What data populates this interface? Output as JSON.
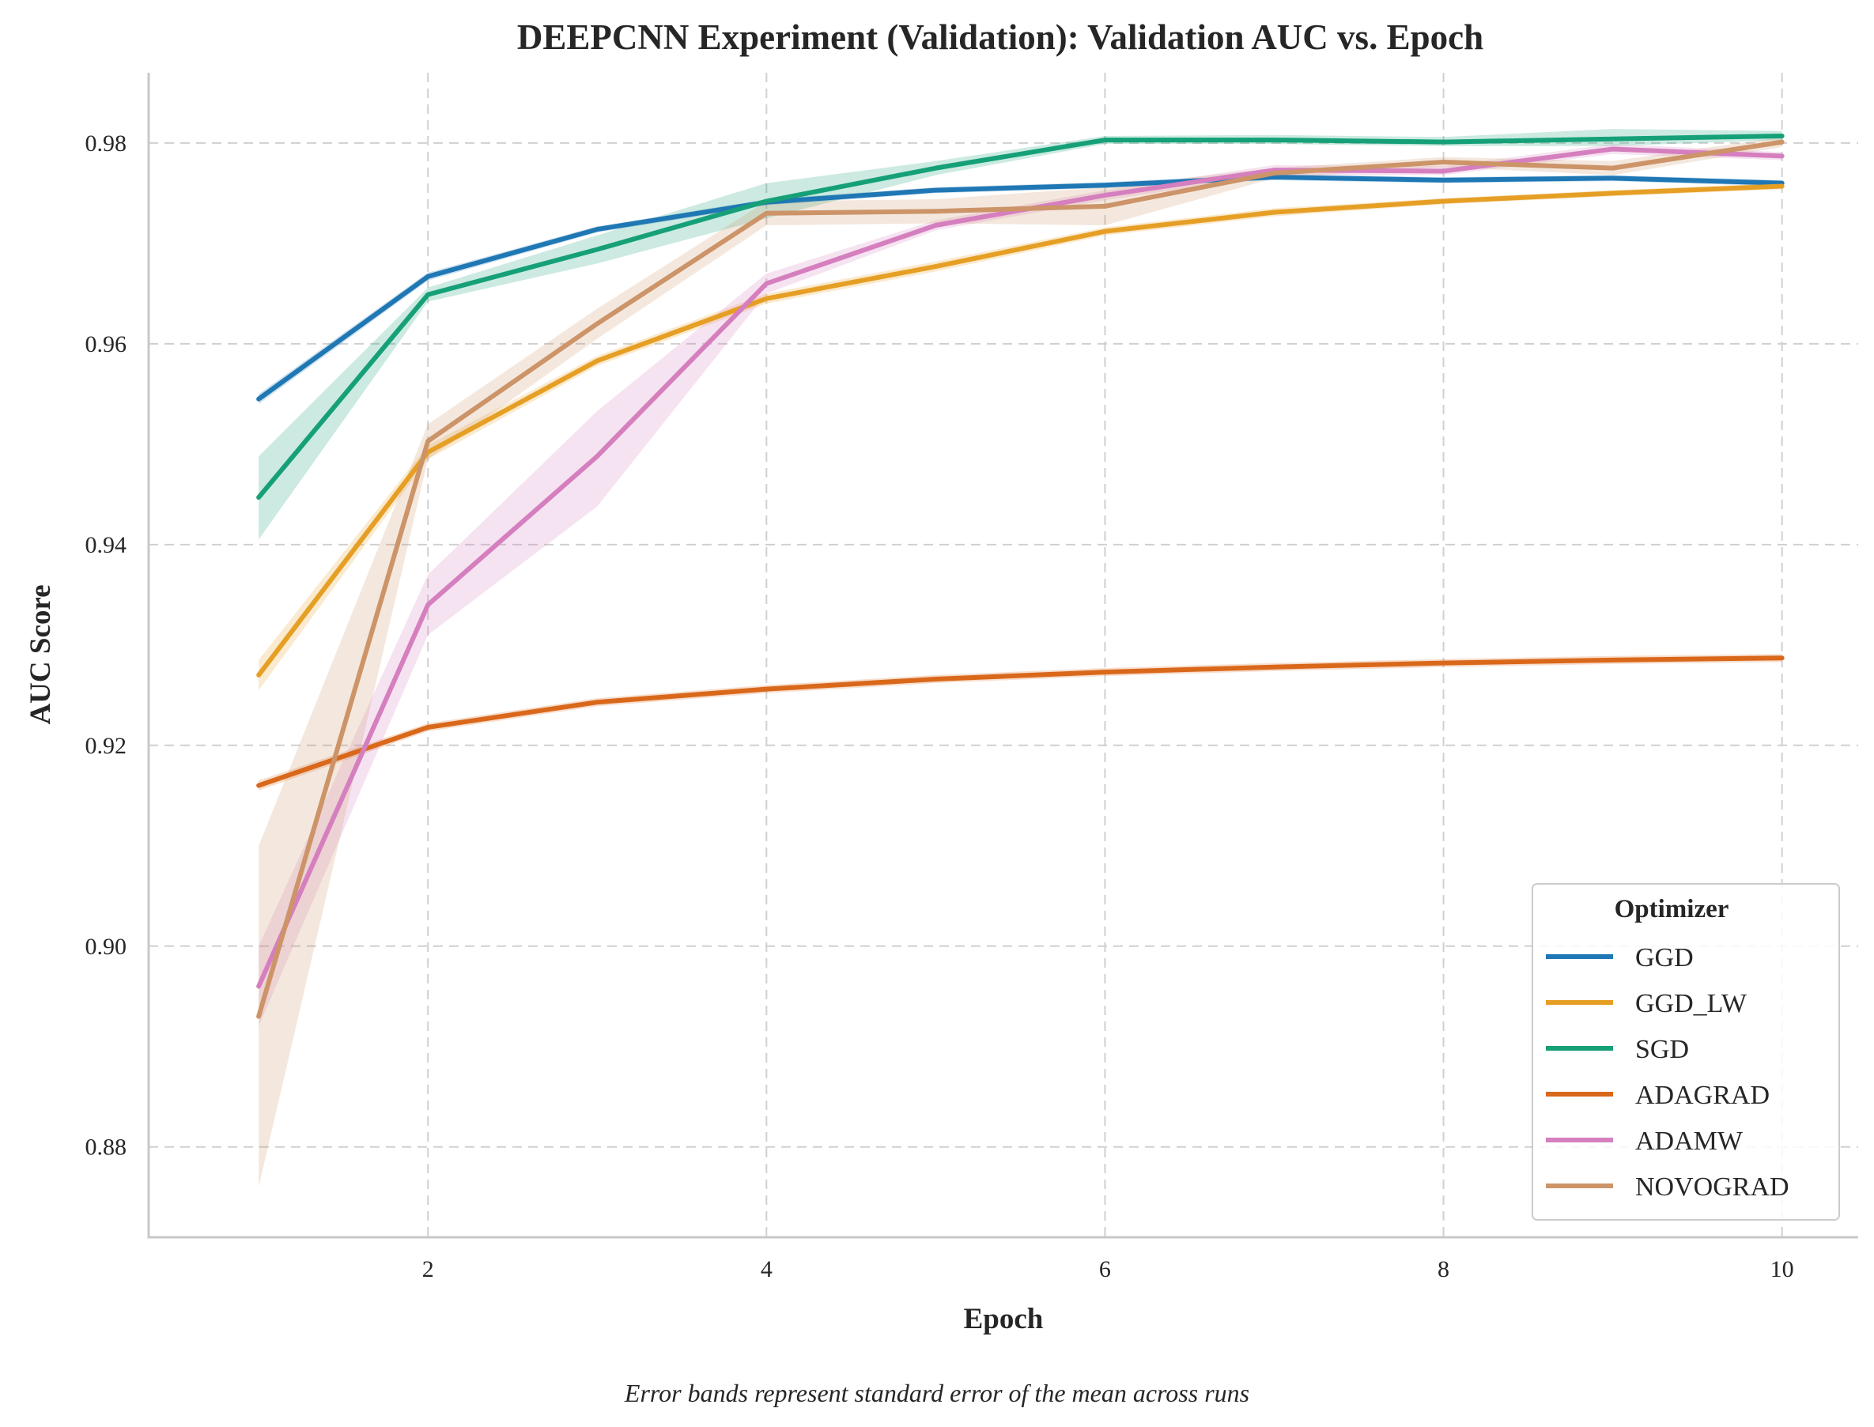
{
  "chart_data": {
    "type": "line",
    "title": "DEEPCNN Experiment (Validation): Validation AUC vs. Epoch",
    "xlabel": "Epoch",
    "ylabel": "AUC Score",
    "caption": "Error bands represent standard error of the mean across runs",
    "xlim": [
      0.35,
      10.45
    ],
    "ylim": [
      0.871,
      0.987
    ],
    "xticks": [
      2,
      4,
      6,
      8,
      10
    ],
    "yticks": [
      0.88,
      0.9,
      0.92,
      0.94,
      0.96,
      0.98
    ],
    "ytick_labels": [
      "0.88",
      "0.90",
      "0.92",
      "0.94",
      "0.96",
      "0.98"
    ],
    "grid": true,
    "legend": {
      "title": "Optimizer",
      "placement": "lower-right"
    },
    "x": [
      1,
      2,
      3,
      4,
      5,
      6,
      7,
      8,
      9,
      10
    ],
    "series": [
      {
        "name": "GGD",
        "color": "#1f77b4",
        "values": [
          0.9545,
          0.9667,
          0.9714,
          0.9741,
          0.9753,
          0.9758,
          0.9766,
          0.9763,
          0.9765,
          0.976
        ],
        "lower": [
          0.954,
          0.9663,
          0.9711,
          0.9738,
          0.975,
          0.9755,
          0.9763,
          0.976,
          0.9762,
          0.9757
        ],
        "upper": [
          0.955,
          0.9671,
          0.9717,
          0.9744,
          0.9756,
          0.9761,
          0.9769,
          0.9766,
          0.9768,
          0.9763
        ]
      },
      {
        "name": "GGD_LW",
        "color": "#e69f25",
        "values": [
          0.927,
          0.9492,
          0.9583,
          0.9645,
          0.9677,
          0.9712,
          0.9731,
          0.9742,
          0.975,
          0.9757
        ],
        "lower": [
          0.9255,
          0.9485,
          0.9578,
          0.964,
          0.9672,
          0.9708,
          0.9727,
          0.9739,
          0.9747,
          0.9754
        ],
        "upper": [
          0.9285,
          0.9499,
          0.9588,
          0.965,
          0.9682,
          0.9716,
          0.9735,
          0.9745,
          0.9753,
          0.976
        ]
      },
      {
        "name": "SGD",
        "color": "#16a078",
        "values": [
          0.9447,
          0.9649,
          0.9694,
          0.9742,
          0.9775,
          0.9803,
          0.9803,
          0.9801,
          0.9804,
          0.9807
        ],
        "lower": [
          0.9405,
          0.9642,
          0.968,
          0.9725,
          0.9768,
          0.9799,
          0.9799,
          0.9797,
          0.9797,
          0.9803
        ],
        "upper": [
          0.9488,
          0.9656,
          0.9708,
          0.976,
          0.9782,
          0.9807,
          0.9808,
          0.9806,
          0.9814,
          0.9812
        ]
      },
      {
        "name": "ADAGRAD",
        "color": "#d9681b",
        "values": [
          0.916,
          0.9218,
          0.9243,
          0.9256,
          0.9266,
          0.9273,
          0.9278,
          0.9282,
          0.9285,
          0.9287
        ],
        "lower": [
          0.9155,
          0.9214,
          0.9239,
          0.9252,
          0.9262,
          0.9269,
          0.9274,
          0.9278,
          0.9281,
          0.9283
        ],
        "upper": [
          0.9165,
          0.9222,
          0.9247,
          0.926,
          0.927,
          0.9277,
          0.9282,
          0.9286,
          0.9289,
          0.9291
        ]
      },
      {
        "name": "ADAMW",
        "color": "#d57fbf",
        "values": [
          0.896,
          0.934,
          0.9488,
          0.966,
          0.9718,
          0.9748,
          0.9773,
          0.9772,
          0.9794,
          0.9787
        ],
        "lower": [
          0.892,
          0.931,
          0.9438,
          0.965,
          0.9713,
          0.9743,
          0.9768,
          0.9768,
          0.9789,
          0.9783
        ],
        "upper": [
          0.9,
          0.937,
          0.9533,
          0.967,
          0.9723,
          0.9753,
          0.9778,
          0.9777,
          0.9799,
          0.9791
        ]
      },
      {
        "name": "NOVOGRAD",
        "color": "#cc9468",
        "values": [
          0.893,
          0.9503,
          0.962,
          0.973,
          0.9732,
          0.9737,
          0.977,
          0.9781,
          0.9775,
          0.9801
        ],
        "lower": [
          0.876,
          0.9485,
          0.9605,
          0.9718,
          0.972,
          0.9718,
          0.9765,
          0.9776,
          0.9768,
          0.9796
        ],
        "upper": [
          0.91,
          0.952,
          0.9635,
          0.9742,
          0.9744,
          0.9756,
          0.9775,
          0.9786,
          0.9782,
          0.9806
        ]
      }
    ]
  }
}
